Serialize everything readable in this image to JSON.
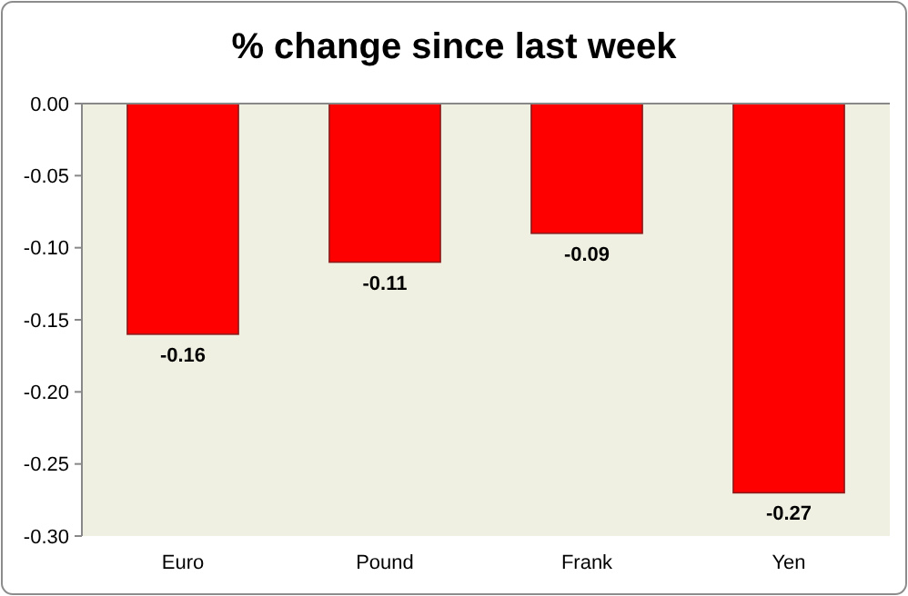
{
  "chart_data": {
    "type": "bar",
    "title": "% change since last week",
    "categories": [
      "Euro",
      "Pound",
      "Frank",
      "Yen"
    ],
    "values": [
      -0.16,
      -0.11,
      -0.09,
      -0.27
    ],
    "color": "#ff0000",
    "ylim": [
      -0.3,
      0
    ],
    "yticks": [
      {
        "value": 0,
        "label": "0.00"
      },
      {
        "value": -0.05,
        "label": "-0.05"
      },
      {
        "value": -0.1,
        "label": "-0.10"
      },
      {
        "value": -0.15,
        "label": "-0.15"
      },
      {
        "value": -0.2,
        "label": "-0.20"
      },
      {
        "value": -0.25,
        "label": "-0.25"
      },
      {
        "value": -0.3,
        "label": "-0.30"
      }
    ],
    "data_labels": true
  }
}
